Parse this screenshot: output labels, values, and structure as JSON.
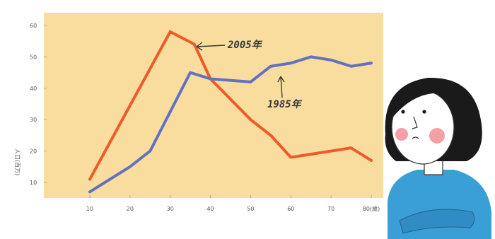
{
  "chart_data": {
    "type": "line",
    "title": "",
    "xlabel": "",
    "ylabel": "人口(百万)",
    "x_ticks": [
      "10",
      "20",
      "30",
      "40",
      "50",
      "60",
      "70",
      "80(歳)"
    ],
    "y_ticks": [
      "10",
      "20",
      "30",
      "40",
      "50",
      "60"
    ],
    "ylim": [
      5,
      64
    ],
    "xlim": [
      9,
      82
    ],
    "grid": false,
    "background": "#f9dd9e",
    "series": [
      {
        "name": "2005年",
        "color": "#ef5a28",
        "x": [
          10,
          30,
          36,
          40,
          50,
          55,
          60,
          70,
          75,
          80
        ],
        "y": [
          11,
          58,
          54,
          43,
          30,
          25,
          18,
          20,
          21,
          17
        ]
      },
      {
        "name": "1985年",
        "color": "#6470c0",
        "x": [
          10,
          20,
          25,
          35,
          40,
          50,
          55,
          60,
          65,
          70,
          75,
          80
        ],
        "y": [
          7,
          15,
          20,
          45,
          43,
          42,
          47,
          48,
          50,
          49,
          47,
          48
        ]
      }
    ],
    "annotations": [
      {
        "text": "2005年"
      },
      {
        "text": "1985年"
      }
    ]
  }
}
